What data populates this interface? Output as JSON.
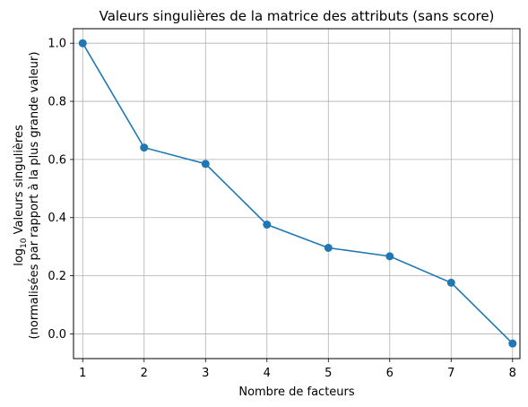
{
  "chart_data": {
    "type": "line",
    "title": "Valeurs singulières de la matrice des attributs (sans score)",
    "xlabel": "Nombre de facteurs",
    "ylabel_line1_base": "log",
    "ylabel_line1_sub": "10",
    "ylabel_line1_rest": "  Valeurs singulières",
    "ylabel_line2": "(normalisées par rapport à la plus grande valeur)",
    "x": [
      1,
      2,
      3,
      4,
      5,
      6,
      7,
      8
    ],
    "series": [
      {
        "values": [
          1.0,
          0.641,
          0.585,
          0.376,
          0.296,
          0.267,
          0.176,
          -0.033
        ]
      }
    ],
    "xlim": [
      0.85,
      8.12
    ],
    "ylim": [
      -0.085,
      1.05
    ],
    "xticks": [
      1,
      2,
      3,
      4,
      5,
      6,
      7,
      8
    ],
    "xtick_labels": [
      "1",
      "2",
      "3",
      "4",
      "5",
      "6",
      "7",
      "8"
    ],
    "yticks": [
      0.0,
      0.2,
      0.4,
      0.6,
      0.8,
      1.0
    ],
    "ytick_labels": [
      "0.0",
      "0.2",
      "0.4",
      "0.6",
      "0.8",
      "1.0"
    ],
    "grid": true,
    "markers": true,
    "color": "#1f77b4"
  }
}
